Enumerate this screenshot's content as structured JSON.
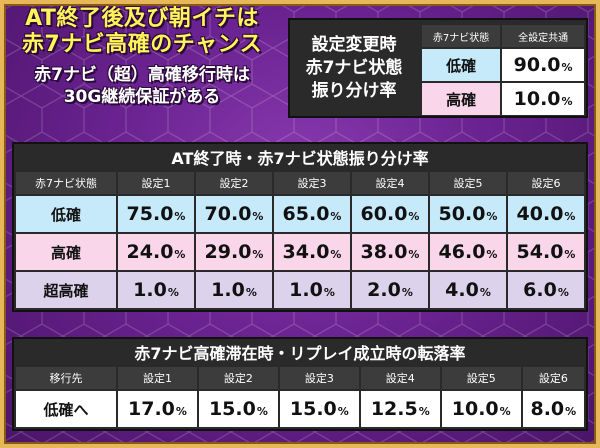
{
  "headline": {
    "line1": "AT終了後及び朝イチは",
    "line2": "赤7ナビ高確のチャンス"
  },
  "subline": {
    "line1": "赤7ナビ（超）高確移行時は",
    "line2": "30G継続保証がある"
  },
  "top_panel": {
    "label_lines": [
      "設定変更時",
      "赤7ナビ状態",
      "振り分け率"
    ],
    "col_state": "赤7ナビ状態",
    "col_all": "全設定共通",
    "rows": [
      {
        "state": "低確",
        "value": "90.0",
        "unit": "%"
      },
      {
        "state": "高確",
        "value": "10.0",
        "unit": "%"
      }
    ]
  },
  "at_end_table": {
    "title": "AT終了時・赤7ナビ状態振り分け率",
    "header_first": "赤7ナビ状態",
    "settings": [
      "設定1",
      "設定2",
      "設定3",
      "設定4",
      "設定5",
      "設定6"
    ],
    "rows": [
      {
        "label": "低確",
        "values": [
          "75.0",
          "70.0",
          "65.0",
          "60.0",
          "50.0",
          "40.0"
        ]
      },
      {
        "label": "高確",
        "values": [
          "24.0",
          "29.0",
          "34.0",
          "38.0",
          "46.0",
          "54.0"
        ]
      },
      {
        "label": "超高確",
        "values": [
          "1.0",
          "1.0",
          "1.0",
          "2.0",
          "4.0",
          "6.0"
        ]
      }
    ],
    "unit": "%"
  },
  "replay_table": {
    "title": "赤7ナビ高確滞在時・リプレイ成立時の転落率",
    "header_first": "移行先",
    "settings": [
      "設定1",
      "設定2",
      "設定3",
      "設定4",
      "設定5",
      "設定6"
    ],
    "rows": [
      {
        "label": "低確へ",
        "values": [
          "17.0",
          "15.0",
          "15.0",
          "12.5",
          "10.0",
          "8.0"
        ]
      }
    ],
    "unit": "%"
  },
  "colors": {
    "headline_yellow": "#fff45a",
    "low_blue": "#c6eafa",
    "high_pink": "#f9d6ea",
    "super_lavender": "#ddd2ec",
    "frame_gold": "#e6b85a"
  }
}
